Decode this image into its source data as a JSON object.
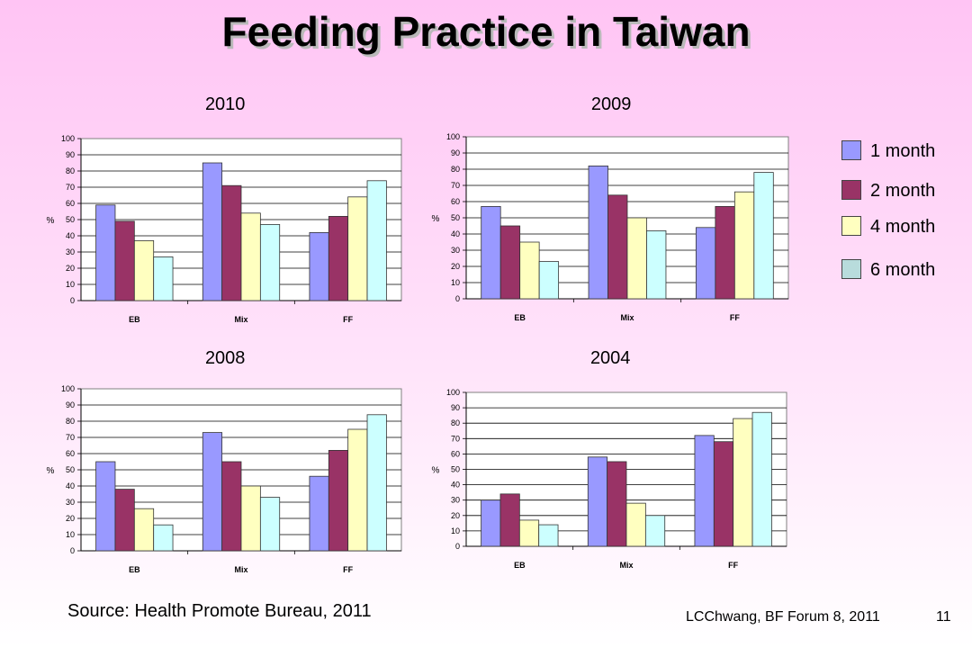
{
  "slide": {
    "title": "Feeding Practice in Taiwan",
    "source": "Source: Health Promote Bureau, 2011",
    "footer": "LCChwang, BF Forum 8, 2011",
    "page_number": "11"
  },
  "legend": [
    {
      "label": "1 month",
      "color": "#9999ff"
    },
    {
      "label": "2 month",
      "color": "#993366"
    },
    {
      "label": "4 month",
      "color": "#ffffc0"
    },
    {
      "label": "6 month",
      "color": "#b8dcdc"
    }
  ],
  "bar_colors": [
    "#9999ff",
    "#993366",
    "#ffffc0",
    "#ccffff"
  ],
  "chart_data": [
    {
      "type": "bar",
      "title": "2010",
      "ylabel": "%",
      "ylim": [
        0,
        100
      ],
      "yticks": [
        "0",
        "10",
        "20",
        "30",
        "40",
        "50",
        "60",
        "70",
        "80",
        "90",
        "100"
      ],
      "categories": [
        "EB",
        "Mix",
        "FF"
      ],
      "series": [
        {
          "name": "1 month",
          "values": [
            59,
            85,
            42
          ]
        },
        {
          "name": "2 month",
          "values": [
            49,
            71,
            52
          ]
        },
        {
          "name": "4 month",
          "values": [
            37,
            54,
            64
          ]
        },
        {
          "name": "6 month",
          "values": [
            27,
            47,
            74
          ]
        }
      ],
      "grid": true
    },
    {
      "type": "bar",
      "title": "2009",
      "ylabel": "%",
      "ylim": [
        0,
        100
      ],
      "yticks": [
        "0",
        "10",
        "20",
        "30",
        "40",
        "50",
        "60",
        "70",
        "80",
        "90",
        "100"
      ],
      "categories": [
        "EB",
        "Mix",
        "FF"
      ],
      "series": [
        {
          "name": "1 month",
          "values": [
            57,
            82,
            44
          ]
        },
        {
          "name": "2 month",
          "values": [
            45,
            64,
            57
          ]
        },
        {
          "name": "4 month",
          "values": [
            35,
            50,
            66
          ]
        },
        {
          "name": "6 month",
          "values": [
            23,
            42,
            78
          ]
        }
      ],
      "grid": true
    },
    {
      "type": "bar",
      "title": "2008",
      "ylabel": "%",
      "ylim": [
        0,
        100
      ],
      "yticks": [
        "0",
        "10",
        "20",
        "30",
        "40",
        "50",
        "60",
        "70",
        "80",
        "90",
        "100"
      ],
      "categories": [
        "EB",
        "Mix",
        "FF"
      ],
      "series": [
        {
          "name": "1 month",
          "values": [
            55,
            73,
            46
          ]
        },
        {
          "name": "2 month",
          "values": [
            38,
            55,
            62
          ]
        },
        {
          "name": "4 month",
          "values": [
            26,
            40,
            75
          ]
        },
        {
          "name": "6 month",
          "values": [
            16,
            33,
            84
          ]
        }
      ],
      "grid": true
    },
    {
      "type": "bar",
      "title": "2004",
      "ylabel": "%",
      "ylim": [
        0,
        100
      ],
      "yticks": [
        "0",
        "10",
        "20",
        "30",
        "40",
        "50",
        "60",
        "70",
        "80",
        "90",
        "100"
      ],
      "categories": [
        "EB",
        "Mix",
        "FF"
      ],
      "series": [
        {
          "name": "1 month",
          "values": [
            30,
            58,
            72
          ]
        },
        {
          "name": "2 month",
          "values": [
            34,
            55,
            68
          ]
        },
        {
          "name": "4 month",
          "values": [
            17,
            28,
            83
          ]
        },
        {
          "name": "6 month",
          "values": [
            14,
            20,
            87
          ]
        }
      ],
      "grid": true
    }
  ]
}
